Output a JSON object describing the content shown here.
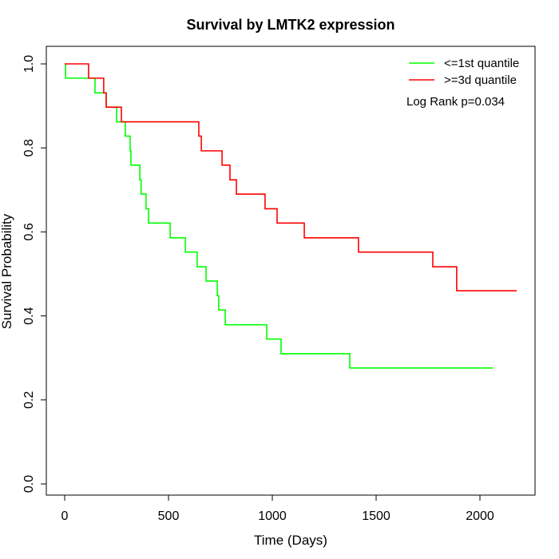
{
  "chart_data": {
    "type": "line",
    "title": "Survival by LMTK2 expression",
    "xlabel": "Time (Days)",
    "ylabel": "Survival Probability",
    "xlim": [
      0,
      2200
    ],
    "ylim": [
      0,
      1
    ],
    "xticks": [
      0,
      500,
      1000,
      1500,
      2000
    ],
    "yticks": [
      "0.0",
      "0.2",
      "0.4",
      "0.6",
      "0.8",
      "1.0"
    ],
    "legend_position": "top-right",
    "annotation": "Log Rank p=0.034",
    "series": [
      {
        "name": "<=1st quantile",
        "color": "#00ff00",
        "steps": [
          [
            0,
            1.0
          ],
          [
            4,
            0.966
          ],
          [
            146,
            0.931
          ],
          [
            200,
            0.897
          ],
          [
            250,
            0.862
          ],
          [
            292,
            0.828
          ],
          [
            315,
            0.793
          ],
          [
            319,
            0.759
          ],
          [
            362,
            0.724
          ],
          [
            368,
            0.69
          ],
          [
            392,
            0.655
          ],
          [
            404,
            0.621
          ],
          [
            508,
            0.586
          ],
          [
            581,
            0.552
          ],
          [
            638,
            0.517
          ],
          [
            681,
            0.483
          ],
          [
            735,
            0.448
          ],
          [
            742,
            0.414
          ],
          [
            773,
            0.379
          ],
          [
            973,
            0.345
          ],
          [
            1042,
            0.31
          ],
          [
            1373,
            0.276
          ]
        ],
        "end": 2062
      },
      {
        "name": ">=3d quantile",
        "color": "#ff0000",
        "steps": [
          [
            0,
            1.0
          ],
          [
            115,
            0.966
          ],
          [
            188,
            0.931
          ],
          [
            200,
            0.897
          ],
          [
            273,
            0.862
          ],
          [
            646,
            0.828
          ],
          [
            658,
            0.793
          ],
          [
            758,
            0.759
          ],
          [
            796,
            0.724
          ],
          [
            827,
            0.69
          ],
          [
            965,
            0.655
          ],
          [
            1023,
            0.621
          ],
          [
            1154,
            0.586
          ],
          [
            1415,
            0.552
          ],
          [
            1773,
            0.517
          ],
          [
            1888,
            0.46
          ]
        ],
        "end": 2177
      }
    ]
  }
}
